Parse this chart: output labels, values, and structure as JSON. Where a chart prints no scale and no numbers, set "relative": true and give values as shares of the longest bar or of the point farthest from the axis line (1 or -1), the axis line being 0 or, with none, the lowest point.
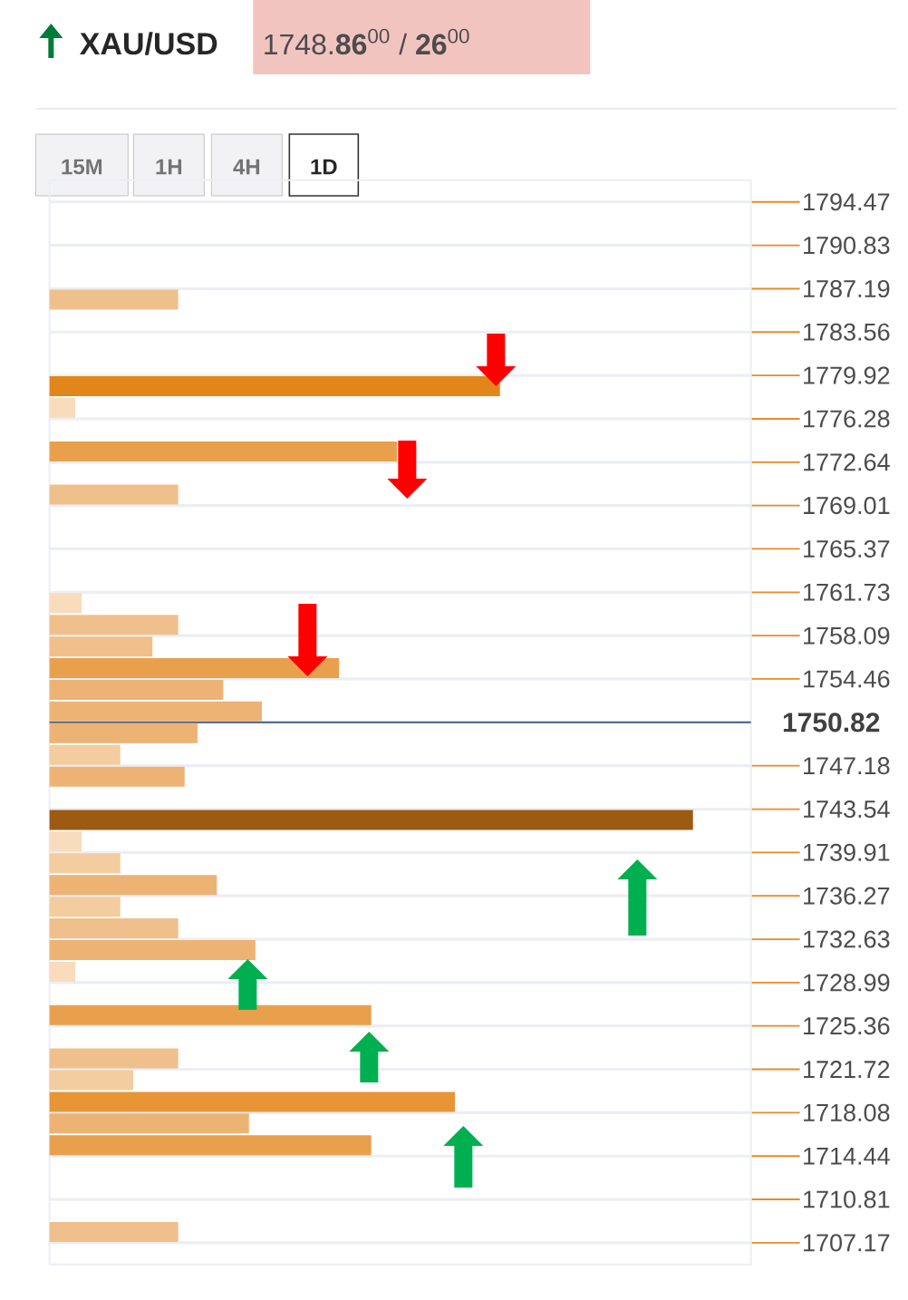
{
  "chart_data": {
    "type": "bar",
    "orientation": "horizontal",
    "relative": true,
    "grid": "y",
    "title": "XAU/USD",
    "subtitle": "1748.**86**$^{00}$ / **26**$^{00}$",
    "annotations": [
      "15M",
      "1H",
      "4H",
      "1D"
    ],
    "ylim": [
      1705.35,
      1796.29
    ],
    "yticks": [
      1794.47,
      1790.83,
      1787.19,
      1783.56,
      1779.92,
      1776.28,
      1772.64,
      1769.01,
      1765.37,
      1761.73,
      1758.09,
      1754.46,
      1747.18,
      1743.54,
      1739.91,
      1736.27,
      1732.63,
      1728.99,
      1725.36,
      1721.72,
      1718.08,
      1714.44,
      1710.81,
      1707.17
    ],
    "ref_lines": [
      {
        "axis": "y",
        "value": 1750.82,
        "label": "1750.82",
        "color": "#3d5a80"
      }
    ],
    "x": [
      1786.28,
      1779.01,
      1777.19,
      1773.55,
      1769.92,
      1760.82,
      1759.0,
      1757.18,
      1755.37,
      1753.55,
      1751.73,
      1749.91,
      1748.09,
      1746.27,
      1742.63,
      1740.82,
      1739.0,
      1737.18,
      1735.36,
      1733.54,
      1731.72,
      1729.9,
      1726.27,
      1722.63,
      1720.81,
      1718.99,
      1717.17,
      1715.35,
      1708.08
    ],
    "values": [
      0.2,
      0.7,
      0.04,
      0.54,
      0.2,
      0.05,
      0.2,
      0.16,
      0.45,
      0.27,
      0.33,
      0.23,
      0.11,
      0.21,
      1,
      0.05,
      0.11,
      0.26,
      0.11,
      0.2,
      0.32,
      0.04,
      0.5,
      0.2,
      0.13,
      0.63,
      0.31,
      0.5,
      0.2
    ],
    "colors": [
      "#f0c08c",
      "#e2861a",
      "#f8dcbc",
      "#e9a04d",
      "#f0c08c",
      "#f8dcbc",
      "#f0c08c",
      "#f0c08c",
      "#e9a04d",
      "#edb374",
      "#edb374",
      "#edb374",
      "#f3cd9f",
      "#edb374",
      "#9c5a12",
      "#f8dcbc",
      "#f3cd9f",
      "#edb374",
      "#f3cd9f",
      "#f0c08c",
      "#edb374",
      "#f8dcbc",
      "#e9a04d",
      "#f0c08c",
      "#f3cd9f",
      "#e89535",
      "#edb374",
      "#e9a04d",
      "#f0c08c"
    ]
  }
}
